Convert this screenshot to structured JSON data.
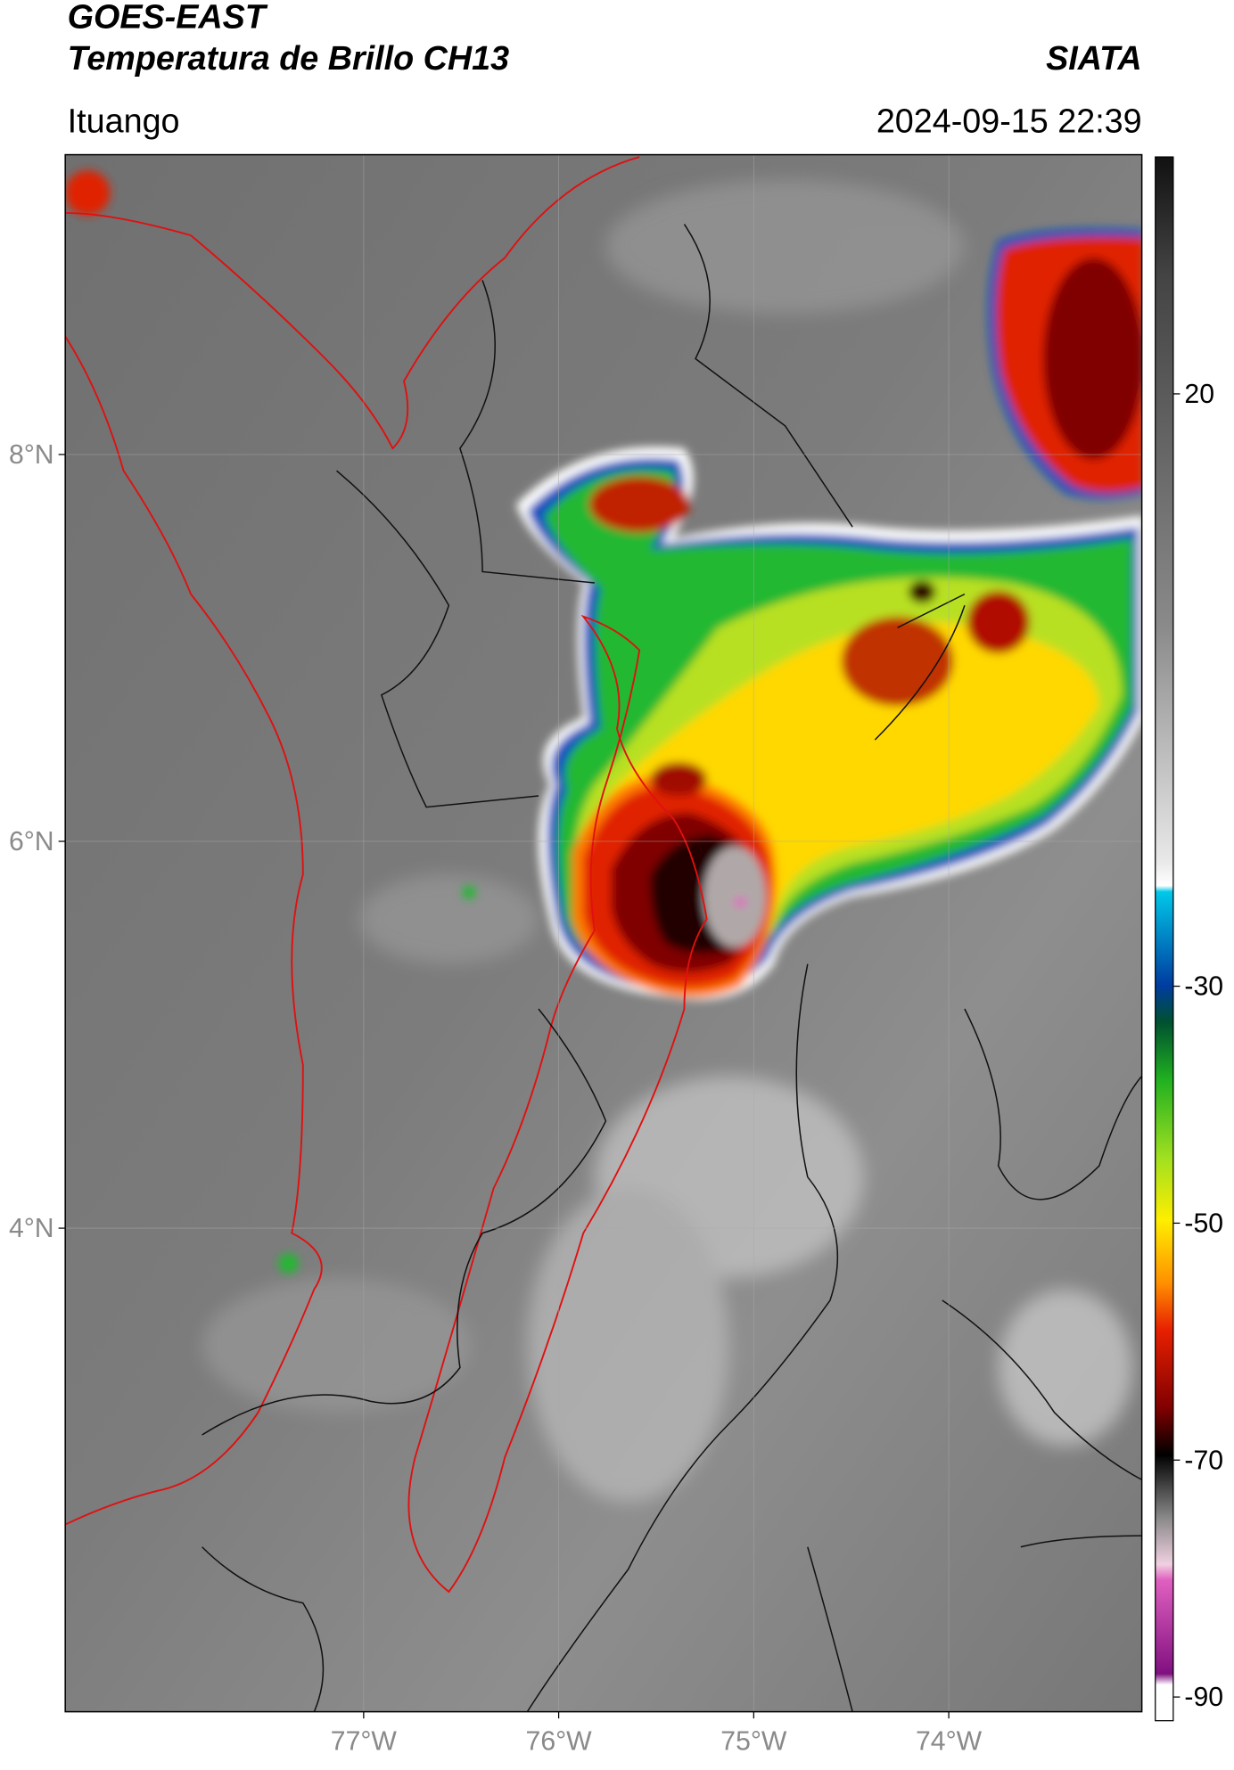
{
  "header": {
    "title": "GOES-EAST",
    "subtitle": "Temperatura de Brillo CH13",
    "brand": "SIATA",
    "location": "Ituango",
    "timestamp": "2024-09-15 22:39"
  },
  "map": {
    "xlim": [
      -78.53,
      -73.01
    ],
    "ylim": [
      1.5,
      9.55
    ],
    "xticks": [
      {
        "value": -77,
        "label": "77°W"
      },
      {
        "value": -76,
        "label": "76°W"
      },
      {
        "value": -75,
        "label": "75°W"
      },
      {
        "value": -74,
        "label": "74°W"
      }
    ],
    "yticks": [
      {
        "value": 8,
        "label": "8°N"
      },
      {
        "value": 6,
        "label": "6°N"
      },
      {
        "value": 4,
        "label": "4°N"
      }
    ]
  },
  "colorbar": {
    "lim": [
      -92,
      40
    ],
    "ticks": [
      20,
      -30,
      -50,
      -70,
      -90
    ]
  }
}
